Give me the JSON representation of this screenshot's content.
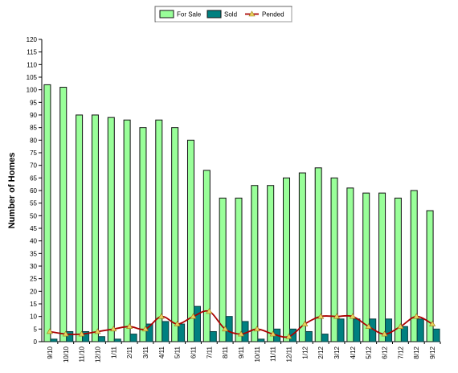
{
  "chart_data": {
    "type": "bar",
    "title": "",
    "xlabel": "",
    "ylabel": "Number of Homes",
    "ylim": [
      0,
      120
    ],
    "yticks": [
      0,
      5,
      10,
      15,
      20,
      25,
      30,
      35,
      40,
      45,
      50,
      55,
      60,
      65,
      70,
      75,
      80,
      85,
      90,
      95,
      100,
      105,
      110,
      115,
      120
    ],
    "grid": false,
    "legend_position": "top-center",
    "categories": [
      "9/10",
      "10/10",
      "11/10",
      "12/10",
      "1/11",
      "2/11",
      "3/11",
      "4/11",
      "5/11",
      "6/11",
      "7/11",
      "8/11",
      "9/11",
      "10/11",
      "11/11",
      "12/11",
      "1/12",
      "2/12",
      "3/12",
      "4/12",
      "5/12",
      "6/12",
      "7/12",
      "8/12",
      "9/12"
    ],
    "series": [
      {
        "name": "For Sale",
        "kind": "bar",
        "color": "#99ff99",
        "values": [
          102,
          101,
          90,
          90,
          89,
          88,
          85,
          88,
          85,
          80,
          68,
          57,
          57,
          62,
          62,
          65,
          67,
          69,
          65,
          61,
          59,
          59,
          57,
          60,
          52
        ]
      },
      {
        "name": "Sold",
        "kind": "bar",
        "color": "#008080",
        "values": [
          1,
          4,
          4,
          2,
          1,
          3,
          7,
          8,
          7,
          14,
          4,
          10,
          8,
          1,
          5,
          5,
          4,
          3,
          9,
          9,
          9,
          9,
          6,
          9,
          5
        ]
      },
      {
        "name": "Pended",
        "kind": "line",
        "color": "#aa0000",
        "marker_color": "#e8d060",
        "values": [
          4,
          3,
          3,
          4,
          5,
          6,
          5,
          10,
          7,
          10,
          12,
          5,
          3,
          5,
          3,
          2,
          7,
          10,
          10,
          10,
          6,
          3,
          6,
          10,
          7
        ]
      }
    ]
  }
}
